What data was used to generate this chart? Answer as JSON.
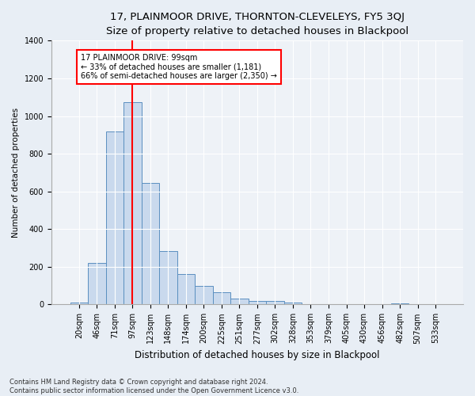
{
  "title1": "17, PLAINMOOR DRIVE, THORNTON-CLEVELEYS, FY5 3QJ",
  "title2": "Size of property relative to detached houses in Blackpool",
  "xlabel": "Distribution of detached houses by size in Blackpool",
  "ylabel": "Number of detached properties",
  "categories": [
    "20sqm",
    "46sqm",
    "71sqm",
    "97sqm",
    "123sqm",
    "148sqm",
    "174sqm",
    "200sqm",
    "225sqm",
    "251sqm",
    "277sqm",
    "302sqm",
    "328sqm",
    "353sqm",
    "379sqm",
    "405sqm",
    "430sqm",
    "456sqm",
    "482sqm",
    "507sqm",
    "533sqm"
  ],
  "values": [
    10,
    220,
    920,
    1075,
    645,
    285,
    160,
    100,
    65,
    32,
    18,
    18,
    10,
    0,
    0,
    0,
    0,
    0,
    8,
    0,
    0
  ],
  "bar_color": "#c9d9ed",
  "bar_edge_color": "#5a8fc0",
  "red_line_index": 3,
  "annotation_text": "17 PLAINMOOR DRIVE: 99sqm\n← 33% of detached houses are smaller (1,181)\n66% of semi-detached houses are larger (2,350) →",
  "annotation_box_color": "white",
  "annotation_box_edge": "red",
  "ylim": [
    0,
    1400
  ],
  "yticks": [
    0,
    200,
    400,
    600,
    800,
    1000,
    1200,
    1400
  ],
  "footer1": "Contains HM Land Registry data © Crown copyright and database right 2024.",
  "footer2": "Contains public sector information licensed under the Open Government Licence v3.0.",
  "bg_color": "#e8eef5",
  "plot_bg_color": "#eef2f7",
  "title1_fontsize": 9.5,
  "title2_fontsize": 8.5,
  "ylabel_fontsize": 7.5,
  "xlabel_fontsize": 8.5,
  "tick_fontsize": 7,
  "footer_fontsize": 6
}
